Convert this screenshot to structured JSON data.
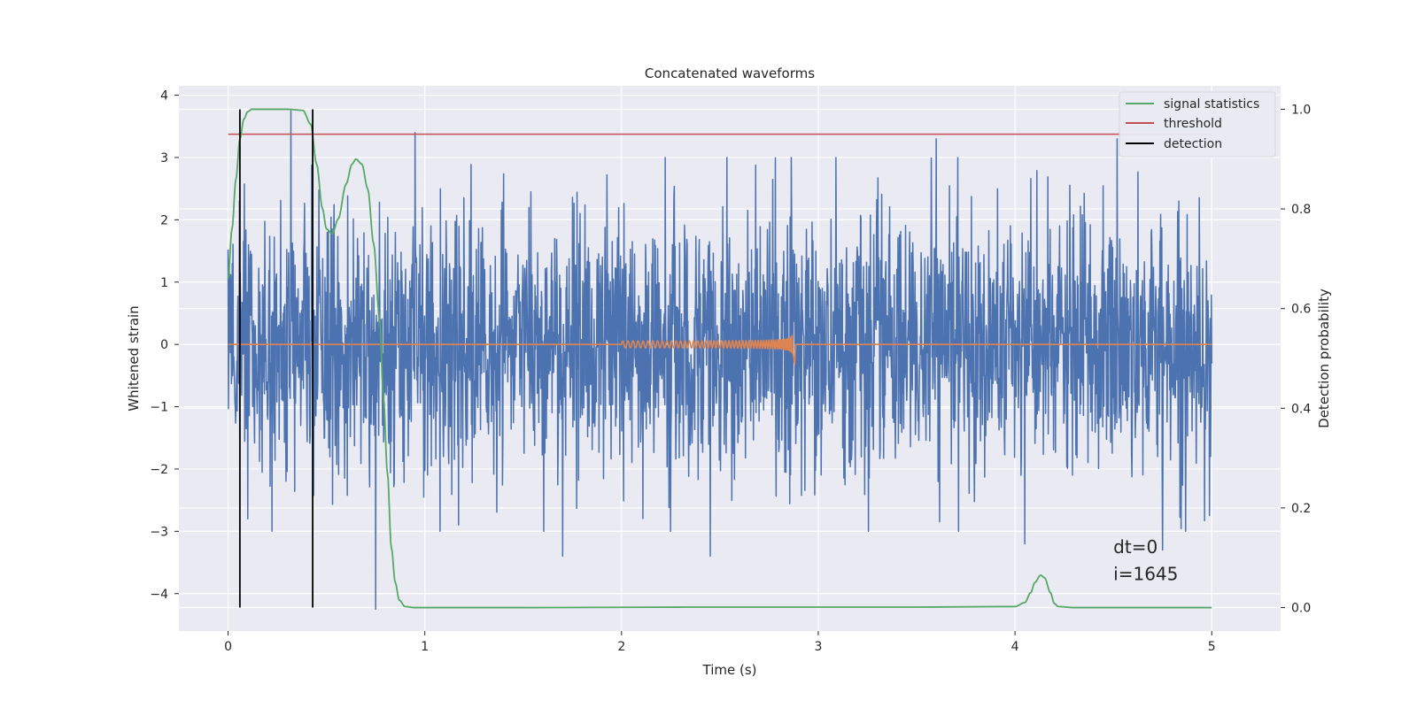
{
  "chart_data": {
    "type": "line",
    "title": "Concatenated waveforms",
    "xlabel": "Time (s)",
    "ylabel": "Whitened strain",
    "ylabel_right": "Detection probability",
    "xlim": [
      -0.25,
      5.35
    ],
    "ylim": [
      -4.6,
      4.15
    ],
    "ylim_right": [
      -0.047,
      1.047
    ],
    "xticks": [
      0,
      1,
      2,
      3,
      4,
      5
    ],
    "yticks": [
      -4,
      -3,
      -2,
      -1,
      0,
      1,
      2,
      3,
      4
    ],
    "yticks_right": [
      0.0,
      0.2,
      0.4,
      0.6,
      0.8,
      1.0
    ],
    "grid": true,
    "legend_position": "top-right",
    "colors": {
      "background": "#eaeaf2",
      "grid": "#ffffff",
      "strain": "#4c72b0",
      "template": "#dd8452",
      "statistic": "#55a868",
      "threshold": "#c44e52",
      "detection": "#000000"
    },
    "series": [
      {
        "name": "",
        "axis": "left",
        "kind": "noise",
        "description_values": {
          "x_range": [
            0,
            5
          ],
          "typical_amplitude": 1.0,
          "peaks": [
            {
              "x": 0.32,
              "y": 3.75
            },
            {
              "x": 0.95,
              "y": 3.4
            },
            {
              "x": 0.1,
              "y": -2.8
            },
            {
              "x": 0.75,
              "y": -4.25
            },
            {
              "x": 1.7,
              "y": -3.4
            },
            {
              "x": 2.45,
              "y": -3.4
            },
            {
              "x": 3.6,
              "y": 3.3
            },
            {
              "x": 4.05,
              "y": -3.2
            },
            {
              "x": 4.75,
              "y": -3.3
            },
            {
              "x": 4.52,
              "y": 3.3
            }
          ]
        }
      },
      {
        "name": "",
        "axis": "left",
        "kind": "chirp",
        "x_start": 2.0,
        "x_merger": 2.87,
        "amplitude_start": 0.05,
        "amplitude_peak": 0.25
      },
      {
        "name": "signal statistics",
        "axis": "right",
        "x": [
          0.0,
          0.02,
          0.04,
          0.06,
          0.08,
          0.1,
          0.12,
          0.15,
          0.2,
          0.3,
          0.38,
          0.42,
          0.45,
          0.48,
          0.5,
          0.53,
          0.56,
          0.6,
          0.63,
          0.65,
          0.68,
          0.71,
          0.74,
          0.77,
          0.79,
          0.81,
          0.83,
          0.85,
          0.87,
          0.9,
          0.95,
          1.5,
          2.5,
          3.5,
          4.0,
          4.05,
          4.08,
          4.1,
          4.13,
          4.15,
          4.18,
          4.2,
          4.22,
          4.3,
          5.0
        ],
        "y": [
          0.66,
          0.76,
          0.86,
          0.94,
          0.98,
          0.995,
          1.0,
          1.0,
          1.0,
          1.0,
          0.998,
          0.97,
          0.89,
          0.8,
          0.76,
          0.75,
          0.78,
          0.85,
          0.89,
          0.9,
          0.89,
          0.84,
          0.73,
          0.58,
          0.42,
          0.27,
          0.12,
          0.05,
          0.015,
          0.002,
          0.0,
          0.0,
          0.001,
          0.001,
          0.002,
          0.01,
          0.03,
          0.05,
          0.065,
          0.06,
          0.03,
          0.008,
          0.002,
          0.0,
          0.0
        ]
      },
      {
        "name": "threshold",
        "axis": "right",
        "x": [
          0.0,
          5.0
        ],
        "y": [
          0.95,
          0.95
        ]
      },
      {
        "name": "detection",
        "axis": "right",
        "kind": "vlines",
        "x": [
          0.06,
          0.43
        ],
        "y_range": [
          0.0,
          1.0
        ]
      }
    ],
    "annotations": [
      {
        "text": "dt=0",
        "x": 4.5,
        "y": -3.35
      },
      {
        "text": "i=1645",
        "x": 4.5,
        "y": -3.78
      }
    ]
  }
}
